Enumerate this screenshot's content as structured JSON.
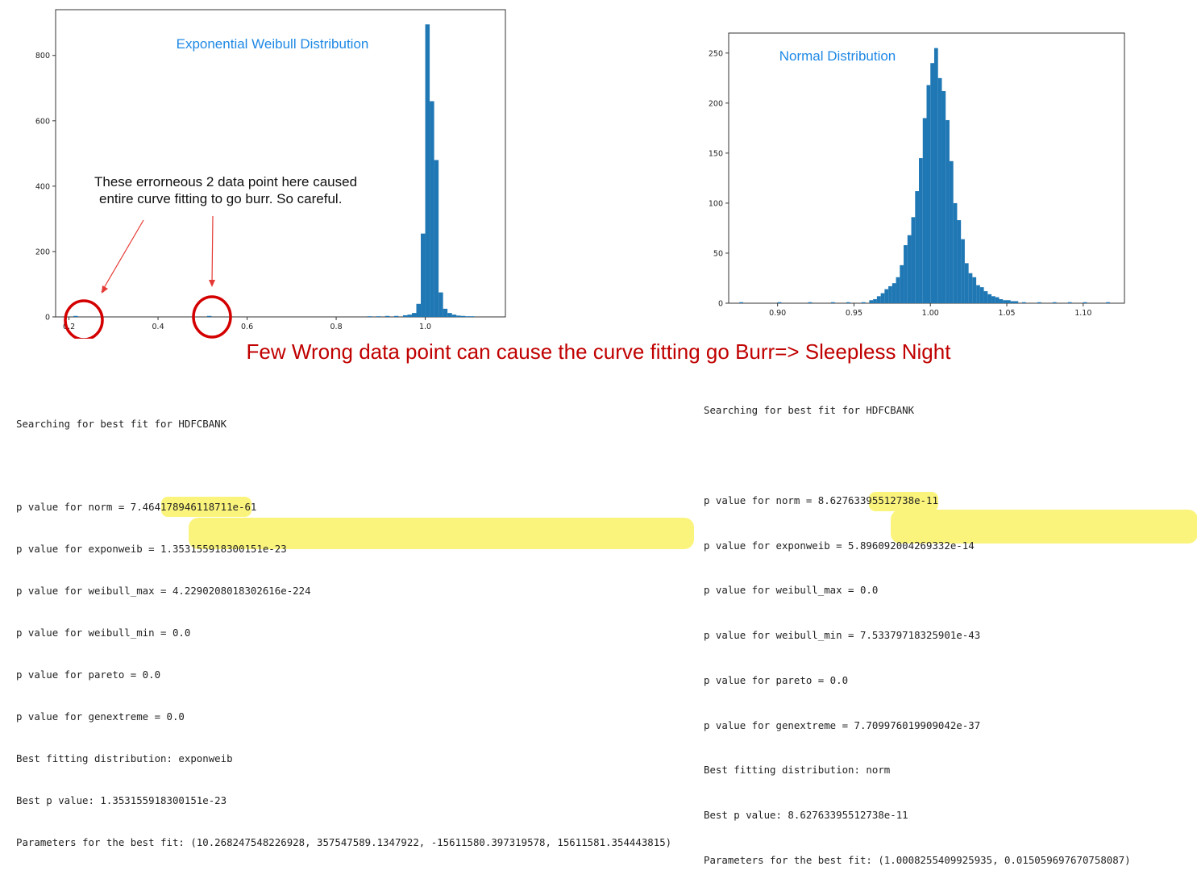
{
  "chart_data": [
    {
      "type": "bar",
      "title": "Exponential Weibull Distribution",
      "xlabel": "",
      "ylabel": "",
      "xlim": [
        0.17,
        1.18
      ],
      "ylim": [
        0,
        940
      ],
      "xticks": [
        "0.2",
        "0.4",
        "0.6",
        "0.8",
        "1.0"
      ],
      "yticks": [
        "0",
        "200",
        "400",
        "600",
        "800"
      ],
      "bin_width": 0.01,
      "bins": [
        [
          0.21,
          3
        ],
        [
          0.51,
          3
        ],
        [
          0.87,
          2
        ],
        [
          0.89,
          2
        ],
        [
          0.91,
          3
        ],
        [
          0.93,
          3
        ],
        [
          0.95,
          5
        ],
        [
          0.96,
          7
        ],
        [
          0.97,
          12
        ],
        [
          0.98,
          40
        ],
        [
          0.99,
          255
        ],
        [
          1.0,
          895
        ],
        [
          1.01,
          660
        ],
        [
          1.02,
          480
        ],
        [
          1.03,
          75
        ],
        [
          1.04,
          25
        ],
        [
          1.05,
          12
        ],
        [
          1.06,
          7
        ],
        [
          1.07,
          4
        ],
        [
          1.08,
          3
        ],
        [
          1.09,
          2
        ],
        [
          1.1,
          2
        ]
      ],
      "annotation": {
        "lines": [
          "These errorneous 2 data point here caused",
          "entire curve fitting to go burr. So careful."
        ]
      }
    },
    {
      "type": "bar",
      "title": "Normal Distribution",
      "xlabel": "",
      "ylabel": "",
      "xlim": [
        0.868,
        1.127
      ],
      "ylim": [
        0,
        270
      ],
      "xticks": [
        "0.90",
        "0.95",
        "1.00",
        "1.05",
        "1.10"
      ],
      "yticks": [
        "0",
        "50",
        "100",
        "150",
        "200",
        "250"
      ],
      "bin_width": 0.0025,
      "bins": [
        [
          0.875,
          1
        ],
        [
          0.9,
          1
        ],
        [
          0.92,
          1
        ],
        [
          0.935,
          1
        ],
        [
          0.945,
          1
        ],
        [
          0.955,
          1
        ],
        [
          0.96,
          3
        ],
        [
          0.9625,
          4
        ],
        [
          0.965,
          7
        ],
        [
          0.9675,
          10
        ],
        [
          0.97,
          14
        ],
        [
          0.9725,
          17
        ],
        [
          0.975,
          20
        ],
        [
          0.9775,
          26
        ],
        [
          0.98,
          38
        ],
        [
          0.9825,
          58
        ],
        [
          0.985,
          68
        ],
        [
          0.9875,
          86
        ],
        [
          0.99,
          112
        ],
        [
          0.9925,
          145
        ],
        [
          0.995,
          185
        ],
        [
          0.9975,
          218
        ],
        [
          1.0,
          240
        ],
        [
          1.0025,
          255
        ],
        [
          1.005,
          225
        ],
        [
          1.0075,
          212
        ],
        [
          1.01,
          183
        ],
        [
          1.0125,
          142
        ],
        [
          1.015,
          100
        ],
        [
          1.0175,
          83
        ],
        [
          1.02,
          64
        ],
        [
          1.0225,
          40
        ],
        [
          1.025,
          30
        ],
        [
          1.0275,
          26
        ],
        [
          1.03,
          18
        ],
        [
          1.0325,
          16
        ],
        [
          1.035,
          12
        ],
        [
          1.0375,
          9
        ],
        [
          1.04,
          7
        ],
        [
          1.0425,
          6
        ],
        [
          1.045,
          4
        ],
        [
          1.0475,
          3
        ],
        [
          1.05,
          3
        ],
        [
          1.0525,
          2
        ],
        [
          1.055,
          2
        ],
        [
          1.06,
          1
        ],
        [
          1.07,
          1
        ],
        [
          1.08,
          1
        ],
        [
          1.09,
          1
        ],
        [
          1.1,
          1
        ],
        [
          1.115,
          1
        ]
      ]
    }
  ],
  "caption": "Few Wrong data point can cause the curve fitting go Burr=> Sleepless Night",
  "console_left": {
    "lines": [
      "Searching for best fit for HDFCBANK",
      "",
      "p value for norm = 7.464178946118711e-61",
      "p value for exponweib = 1.353155918300151e-23",
      "p value for weibull_max = 4.2290208018302616e-224",
      "p value for weibull_min = 0.0",
      "p value for pareto = 0.0",
      "p value for genextreme = 0.0",
      "Best fitting distribution: exponweib",
      "Best p value: 1.353155918300151e-23",
      "Parameters for the best fit: (10.268247548226928, 357547589.1347922, -15611580.397319578, 15611581.354443815)"
    ]
  },
  "console_right": {
    "lines": [
      "Searching for best fit for HDFCBANK",
      "",
      "p value for norm = 8.62763395512738e-11",
      "p value for exponweib = 5.896092004269332e-14",
      "p value for weibull_max = 0.0",
      "p value for weibull_min = 7.53379718325901e-43",
      "p value for pareto = 0.0",
      "p value for genextreme = 7.709976019909042e-37",
      "Best fitting distribution: norm",
      "Best p value: 8.62763395512738e-11",
      "Parameters for the best fit: (1.0008255409925935, 0.015059697670758087)"
    ]
  },
  "colors": {
    "bar": "#1f77b4",
    "title": "#1e88e5",
    "annotation_arrow": "#e53935",
    "circle": "#d40000",
    "caption": "#c00000",
    "highlight": "#fbf47c"
  }
}
